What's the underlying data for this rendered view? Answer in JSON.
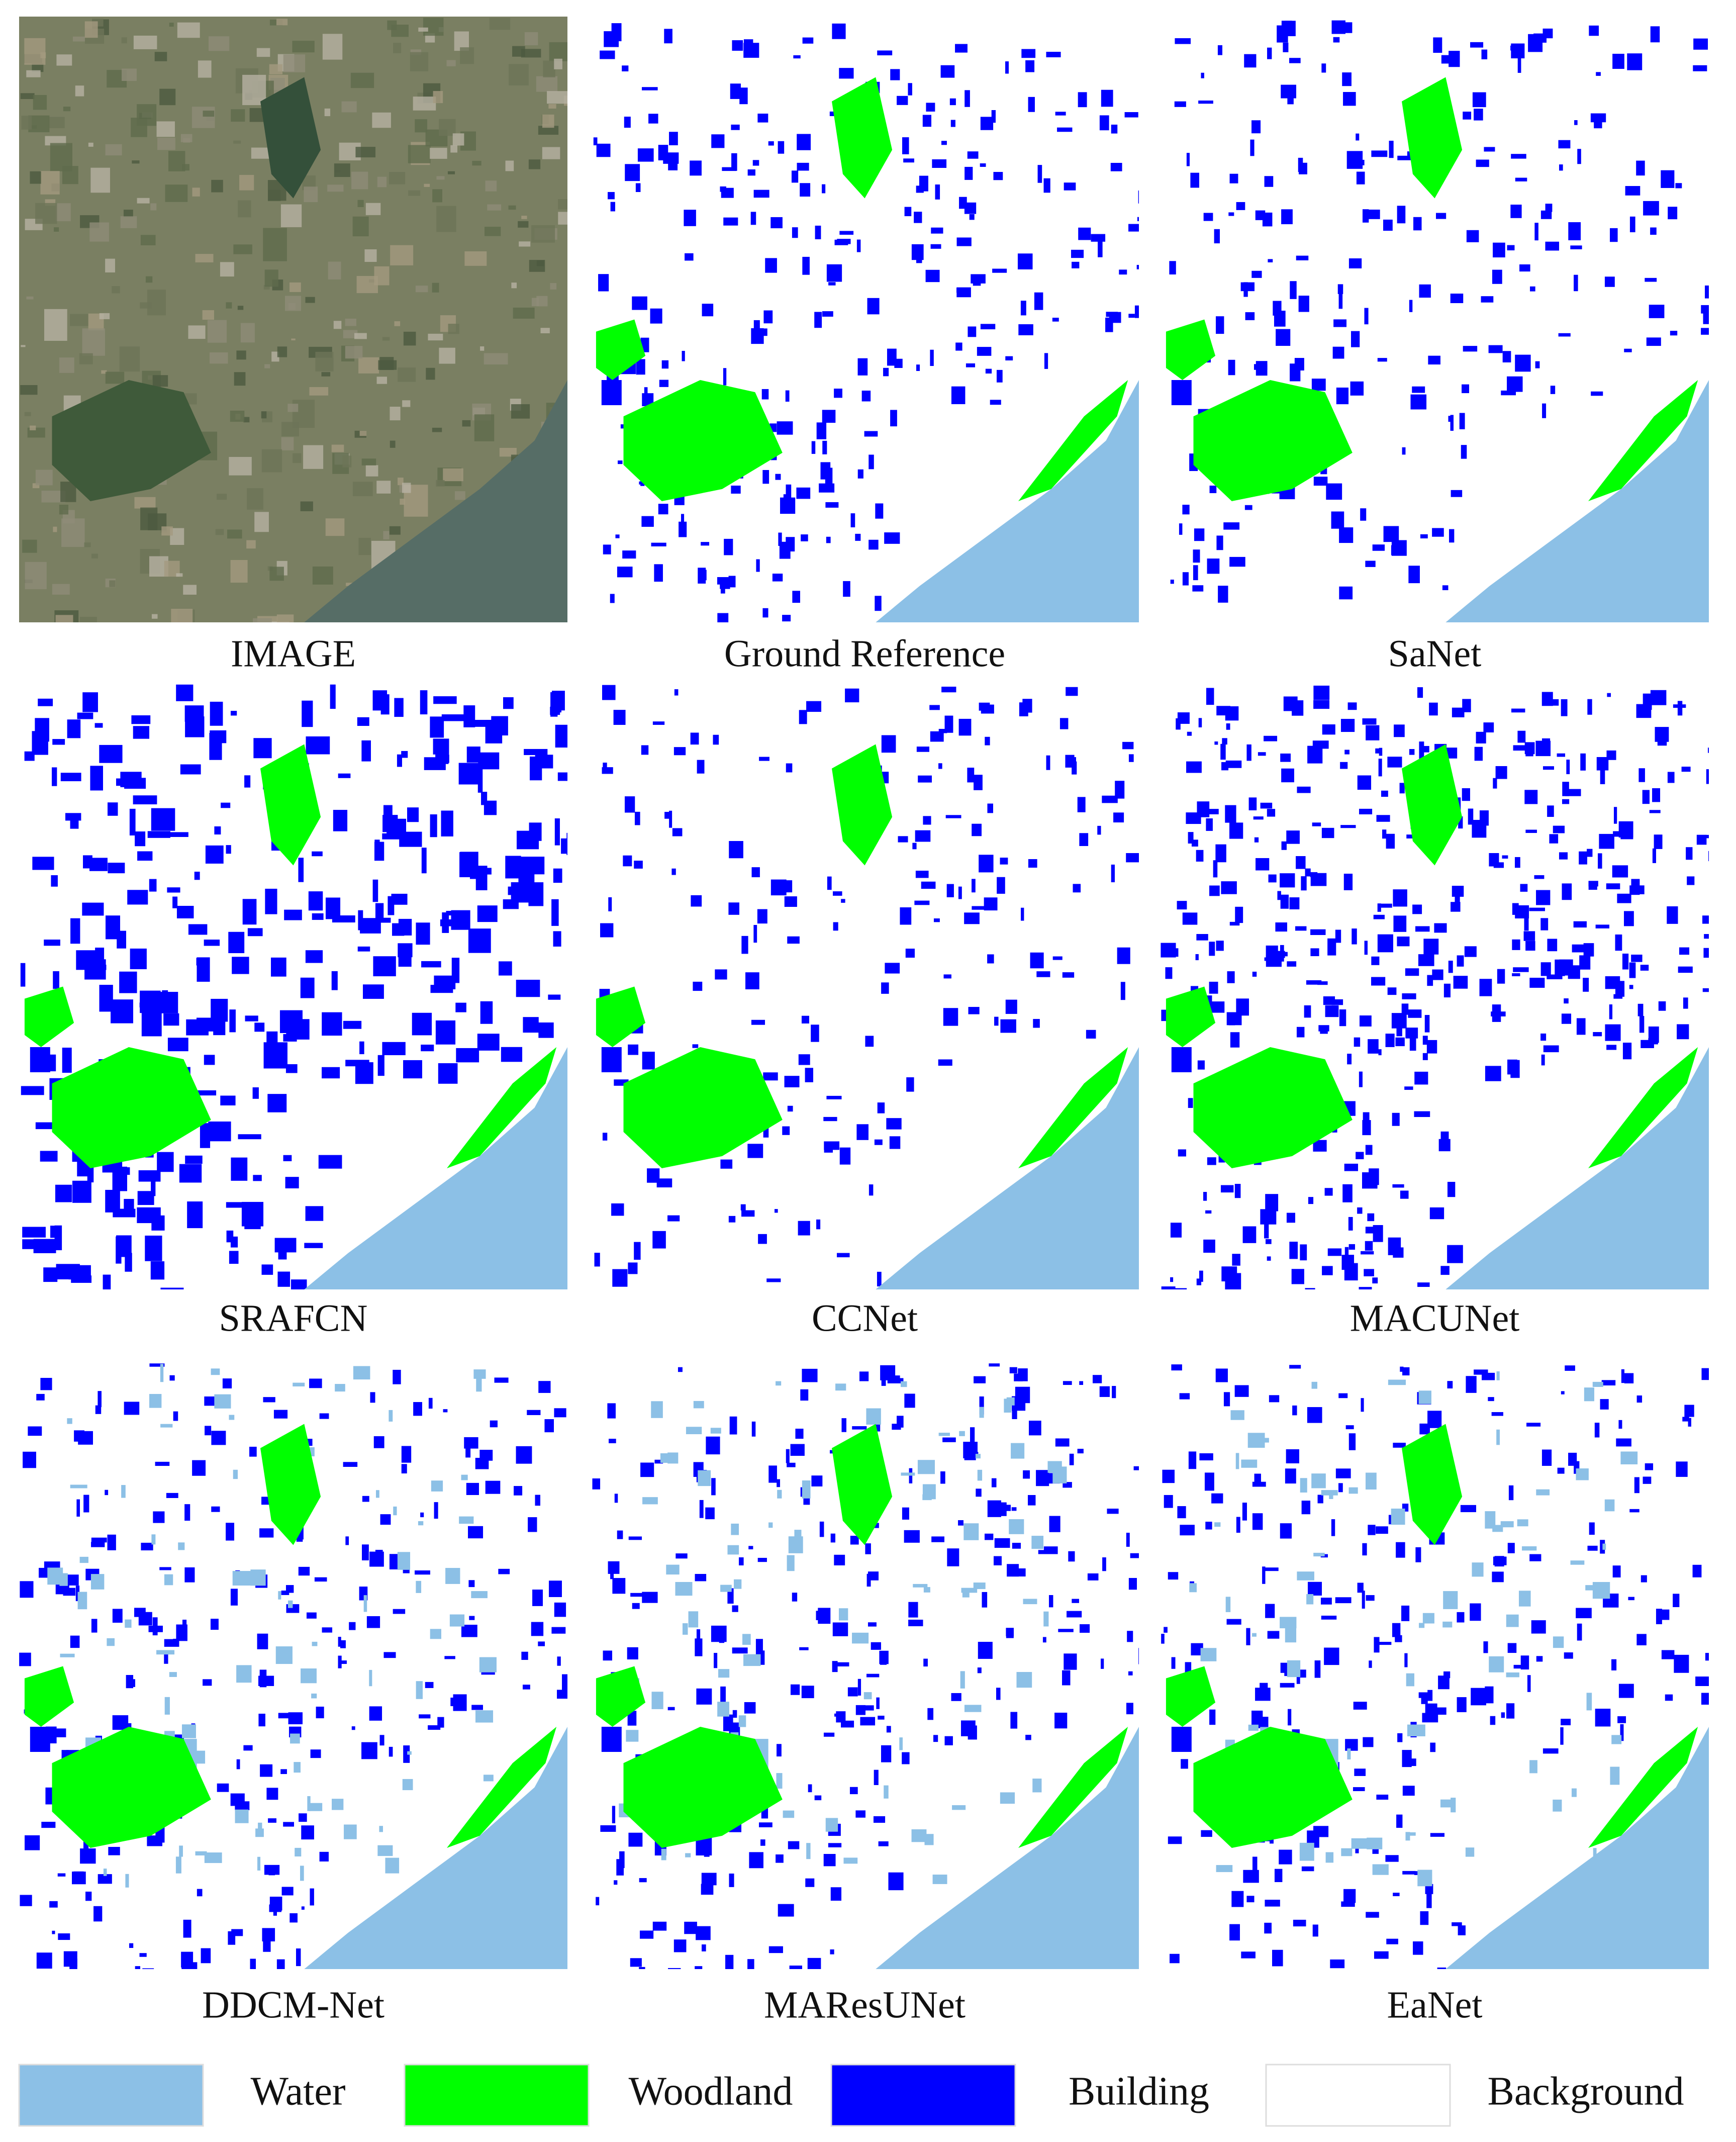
{
  "panels": [
    {
      "label": "IMAGE"
    },
    {
      "label": "Ground Reference"
    },
    {
      "label": "SaNet"
    },
    {
      "label": "SRAFCN"
    },
    {
      "label": "CCNet"
    },
    {
      "label": "MACUNet"
    },
    {
      "label": "DDCM-Net"
    },
    {
      "label": "MAResUNet"
    },
    {
      "label": "EaNet"
    }
  ],
  "legend": [
    {
      "label": "Water",
      "color": "#8cc0e6"
    },
    {
      "label": "Woodland",
      "color": "#00ff00"
    },
    {
      "label": "Building",
      "color": "#0000ff"
    },
    {
      "label": "Background",
      "color": "#ffffff"
    }
  ]
}
